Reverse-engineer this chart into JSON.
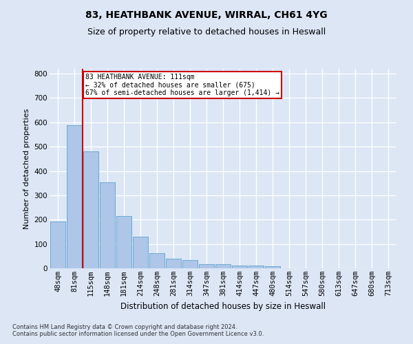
{
  "title_line1": "83, HEATHBANK AVENUE, WIRRAL, CH61 4YG",
  "title_line2": "Size of property relative to detached houses in Heswall",
  "xlabel": "Distribution of detached houses by size in Heswall",
  "ylabel": "Number of detached properties",
  "footer": "Contains HM Land Registry data © Crown copyright and database right 2024.\nContains public sector information licensed under the Open Government Licence v3.0.",
  "categories": [
    "48sqm",
    "81sqm",
    "115sqm",
    "148sqm",
    "181sqm",
    "214sqm",
    "248sqm",
    "281sqm",
    "314sqm",
    "347sqm",
    "381sqm",
    "414sqm",
    "447sqm",
    "480sqm",
    "514sqm",
    "547sqm",
    "580sqm",
    "613sqm",
    "647sqm",
    "680sqm",
    "713sqm"
  ],
  "values": [
    193,
    588,
    480,
    353,
    215,
    130,
    63,
    40,
    33,
    17,
    16,
    11,
    12,
    9,
    0,
    0,
    0,
    0,
    0,
    0,
    0
  ],
  "bar_color": "#aec6e8",
  "bar_edgecolor": "#6aaad4",
  "background_color": "#dce6f5",
  "grid_color": "#ffffff",
  "vline_color": "#cc0000",
  "annotation_text": "83 HEATHBANK AVENUE: 111sqm\n← 32% of detached houses are smaller (675)\n67% of semi-detached houses are larger (1,414) →",
  "annotation_box_edgecolor": "#cc0000",
  "annotation_box_facecolor": "#ffffff",
  "ylim": [
    0,
    820
  ],
  "yticks": [
    0,
    100,
    200,
    300,
    400,
    500,
    600,
    700,
    800
  ],
  "title1_fontsize": 10,
  "title2_fontsize": 9,
  "xlabel_fontsize": 8.5,
  "ylabel_fontsize": 8,
  "tick_fontsize": 7.5,
  "footer_fontsize": 6,
  "ann_fontsize": 7
}
